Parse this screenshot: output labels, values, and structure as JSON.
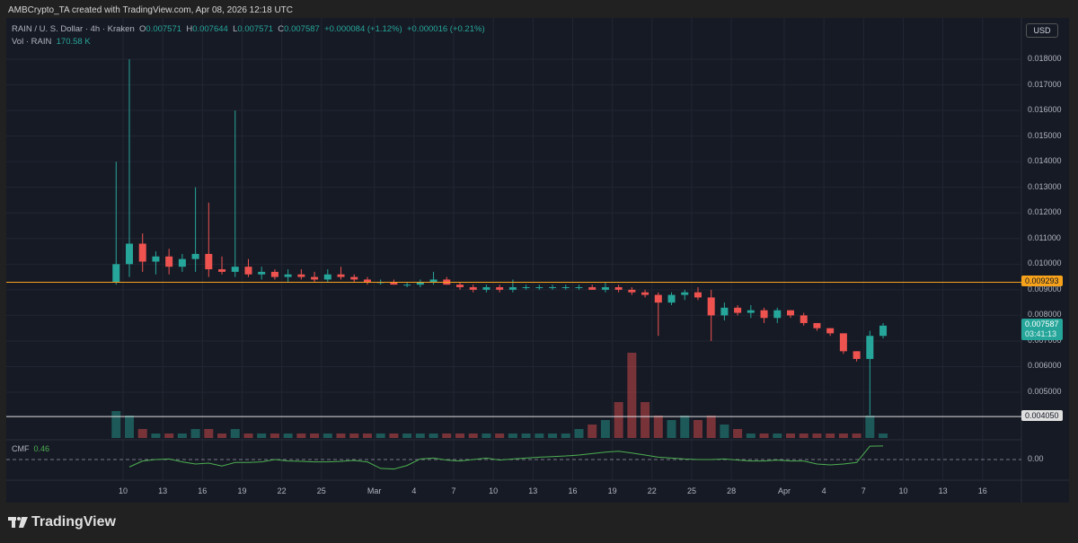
{
  "credit": "AMBCrypto_TA created with TradingView.com, Apr 08, 2026 12:18 UTC",
  "legend": {
    "symbol": "RAIN / U. S. Dollar · 4h · Kraken",
    "o_label": "O",
    "o": "0.007571",
    "h_label": "H",
    "h": "0.007644",
    "l_label": "L",
    "l": "0.007571",
    "c_label": "C",
    "c": "0.007587",
    "change": "+0.000084 (+1.12%)",
    "change2": "+0.000016 (+0.21%)",
    "vol_label": "Vol · RAIN",
    "vol": "170.58 K"
  },
  "currency_button": "USD",
  "cmf": {
    "label": "CMF",
    "value": "0.46",
    "zero_label": "0.00"
  },
  "logo": "TradingView",
  "colors": {
    "up": "#26a69a",
    "down": "#ef5350",
    "cmf": "#4caf50",
    "resistance": "#f7a21b",
    "support": "#e0e0e0",
    "last_price": "#26a69a"
  },
  "chart_data": {
    "type": "candlestick",
    "timeframe": "4h",
    "ylim": [
      0.0035,
      0.0188
    ],
    "price_ticks": [
      "0.018000",
      "0.017000",
      "0.016000",
      "0.015000",
      "0.014000",
      "0.013000",
      "0.012000",
      "0.011000",
      "0.010000",
      "0.009000",
      "0.008000",
      "0.007000",
      "0.006000",
      "0.005000"
    ],
    "x_ticks": [
      {
        "date": "2026-02-10",
        "label": "10"
      },
      {
        "date": "2026-02-13",
        "label": "13"
      },
      {
        "date": "2026-02-16",
        "label": "16"
      },
      {
        "date": "2026-02-19",
        "label": "19"
      },
      {
        "date": "2026-02-22",
        "label": "22"
      },
      {
        "date": "2026-02-25",
        "label": "25"
      },
      {
        "date": "2026-03-01",
        "label": "Mar"
      },
      {
        "date": "2026-03-04",
        "label": "4"
      },
      {
        "date": "2026-03-07",
        "label": "7"
      },
      {
        "date": "2026-03-10",
        "label": "10"
      },
      {
        "date": "2026-03-13",
        "label": "13"
      },
      {
        "date": "2026-03-16",
        "label": "16"
      },
      {
        "date": "2026-03-19",
        "label": "19"
      },
      {
        "date": "2026-03-22",
        "label": "22"
      },
      {
        "date": "2026-03-25",
        "label": "25"
      },
      {
        "date": "2026-03-28",
        "label": "28"
      },
      {
        "date": "2026-04-01",
        "label": "Apr"
      },
      {
        "date": "2026-04-04",
        "label": "4"
      },
      {
        "date": "2026-04-07",
        "label": "7"
      },
      {
        "date": "2026-04-10",
        "label": "10"
      },
      {
        "date": "2026-04-13",
        "label": "13"
      },
      {
        "date": "2026-04-16",
        "label": "16"
      }
    ],
    "horizontal_lines": [
      {
        "price": 0.009293,
        "label": "0.009293",
        "color": "#f7a21b"
      },
      {
        "price": 0.00405,
        "label": "0.004050",
        "color": "#e0e0e0"
      }
    ],
    "last_price": {
      "price": 0.007587,
      "label": "0.007587",
      "countdown": "03:41:13"
    },
    "candles": [
      [
        "2026-02-09",
        0.0093,
        0.014,
        0.0092,
        0.01,
        6
      ],
      [
        "2026-02-10",
        0.01,
        0.018,
        0.0095,
        0.0108,
        5
      ],
      [
        "2026-02-11",
        0.0108,
        0.0112,
        0.0097,
        0.0101,
        2
      ],
      [
        "2026-02-12",
        0.0101,
        0.0105,
        0.0096,
        0.0103,
        1
      ],
      [
        "2026-02-13",
        0.0103,
        0.0106,
        0.0096,
        0.0099,
        1
      ],
      [
        "2026-02-14",
        0.0099,
        0.0104,
        0.0097,
        0.0102,
        1
      ],
      [
        "2026-02-15",
        0.0102,
        0.013,
        0.0097,
        0.0104,
        2
      ],
      [
        "2026-02-16",
        0.0104,
        0.0124,
        0.0095,
        0.0098,
        2
      ],
      [
        "2026-02-17",
        0.0098,
        0.0103,
        0.0096,
        0.0097,
        1
      ],
      [
        "2026-02-18",
        0.0097,
        0.016,
        0.0095,
        0.0099,
        2
      ],
      [
        "2026-02-19",
        0.0099,
        0.0102,
        0.0095,
        0.0096,
        1
      ],
      [
        "2026-02-20",
        0.0096,
        0.0099,
        0.0094,
        0.0097,
        1
      ],
      [
        "2026-02-21",
        0.0097,
        0.0098,
        0.0094,
        0.0095,
        1
      ],
      [
        "2026-02-22",
        0.0095,
        0.0098,
        0.0093,
        0.0096,
        1
      ],
      [
        "2026-02-23",
        0.0096,
        0.0098,
        0.0094,
        0.0095,
        1
      ],
      [
        "2026-02-24",
        0.0095,
        0.0097,
        0.0093,
        0.0094,
        1
      ],
      [
        "2026-02-25",
        0.0094,
        0.0098,
        0.0093,
        0.0096,
        1
      ],
      [
        "2026-02-26",
        0.0096,
        0.0099,
        0.0094,
        0.0095,
        1
      ],
      [
        "2026-02-27",
        0.0095,
        0.0096,
        0.0093,
        0.0094,
        1
      ],
      [
        "2026-02-28",
        0.0094,
        0.0095,
        0.0092,
        0.0093,
        1
      ],
      [
        "2026-03-01",
        0.0093,
        0.0094,
        0.0092,
        0.0093,
        1
      ],
      [
        "2026-03-02",
        0.0093,
        0.0094,
        0.0092,
        0.0092,
        1
      ],
      [
        "2026-03-03",
        0.0092,
        0.0093,
        0.0091,
        0.0092,
        1
      ],
      [
        "2026-03-04",
        0.0092,
        0.0094,
        0.0091,
        0.0093,
        1
      ],
      [
        "2026-03-05",
        0.0093,
        0.0097,
        0.0092,
        0.0094,
        1
      ],
      [
        "2026-03-06",
        0.0094,
        0.0095,
        0.0092,
        0.0092,
        1
      ],
      [
        "2026-03-07",
        0.0092,
        0.0093,
        0.009,
        0.0091,
        1
      ],
      [
        "2026-03-08",
        0.0091,
        0.0092,
        0.0089,
        0.009,
        1
      ],
      [
        "2026-03-09",
        0.009,
        0.0092,
        0.0089,
        0.0091,
        1
      ],
      [
        "2026-03-10",
        0.0091,
        0.0092,
        0.0089,
        0.009,
        1
      ],
      [
        "2026-03-11",
        0.009,
        0.0094,
        0.0089,
        0.0091,
        1
      ],
      [
        "2026-03-12",
        0.0091,
        0.0092,
        0.009,
        0.0091,
        1
      ],
      [
        "2026-03-13",
        0.0091,
        0.0092,
        0.009,
        0.0091,
        1
      ],
      [
        "2026-03-14",
        0.0091,
        0.0092,
        0.009,
        0.0091,
        1
      ],
      [
        "2026-03-15",
        0.0091,
        0.0092,
        0.009,
        0.0091,
        1
      ],
      [
        "2026-03-16",
        0.0091,
        0.0092,
        0.009,
        0.0091,
        2
      ],
      [
        "2026-03-17",
        0.0091,
        0.0092,
        0.009,
        0.009,
        3
      ],
      [
        "2026-03-18",
        0.009,
        0.0093,
        0.0089,
        0.0091,
        4
      ],
      [
        "2026-03-19",
        0.0091,
        0.0092,
        0.0089,
        0.009,
        8
      ],
      [
        "2026-03-20",
        0.009,
        0.0091,
        0.0088,
        0.0089,
        20
      ],
      [
        "2026-03-21",
        0.0089,
        0.009,
        0.0087,
        0.0088,
        8
      ],
      [
        "2026-03-22",
        0.0088,
        0.0089,
        0.0072,
        0.0085,
        5
      ],
      [
        "2026-03-23",
        0.0085,
        0.0089,
        0.0084,
        0.0088,
        4
      ],
      [
        "2026-03-24",
        0.0088,
        0.009,
        0.0086,
        0.0089,
        5
      ],
      [
        "2026-03-25",
        0.0089,
        0.0091,
        0.0086,
        0.0087,
        4
      ],
      [
        "2026-03-26",
        0.0087,
        0.009,
        0.007,
        0.008,
        5
      ],
      [
        "2026-03-27",
        0.008,
        0.0085,
        0.0078,
        0.0083,
        3
      ],
      [
        "2026-03-28",
        0.0083,
        0.0084,
        0.008,
        0.0081,
        2
      ],
      [
        "2026-03-29",
        0.0081,
        0.0084,
        0.0079,
        0.0082,
        1
      ],
      [
        "2026-03-30",
        0.0082,
        0.0083,
        0.0077,
        0.0079,
        1
      ],
      [
        "2026-03-31",
        0.0079,
        0.0083,
        0.0077,
        0.0082,
        1
      ],
      [
        "2026-04-01",
        0.0082,
        0.0082,
        0.0079,
        0.008,
        1
      ],
      [
        "2026-04-02",
        0.008,
        0.0081,
        0.0076,
        0.0077,
        1
      ],
      [
        "2026-04-03",
        0.0077,
        0.0077,
        0.0074,
        0.0075,
        1
      ],
      [
        "2026-04-04",
        0.0075,
        0.0075,
        0.0072,
        0.0073,
        1
      ],
      [
        "2026-04-05",
        0.0073,
        0.0073,
        0.0065,
        0.0066,
        1
      ],
      [
        "2026-04-06",
        0.0066,
        0.0066,
        0.0062,
        0.0063,
        1
      ],
      [
        "2026-04-07",
        0.0063,
        0.0074,
        0.0041,
        0.0072,
        5
      ],
      [
        "2026-04-08",
        0.0072,
        0.0077,
        0.0071,
        0.0076,
        1
      ]
    ],
    "candle_columns": [
      "date",
      "open",
      "high",
      "low",
      "close",
      "volume_relative"
    ],
    "cmf_series": [
      0,
      -0.25,
      -0.05,
      0.0,
      0.02,
      -0.08,
      -0.15,
      -0.12,
      -0.22,
      -0.1,
      -0.1,
      -0.08,
      0.0,
      -0.05,
      -0.06,
      -0.08,
      -0.08,
      -0.06,
      -0.03,
      -0.08,
      -0.3,
      -0.32,
      -0.2,
      0.02,
      0.05,
      -0.02,
      -0.05,
      0.0,
      0.05,
      -0.02,
      0.02,
      0.05,
      0.08,
      0.1,
      0.12,
      0.15,
      0.2,
      0.25,
      0.28,
      0.22,
      0.15,
      0.08,
      0.05,
      0.02,
      0.0,
      0.0,
      0.02,
      -0.02,
      -0.05,
      -0.05,
      -0.02,
      -0.05,
      -0.05,
      -0.15,
      -0.18,
      -0.15,
      -0.1,
      0.45,
      0.46
    ]
  }
}
